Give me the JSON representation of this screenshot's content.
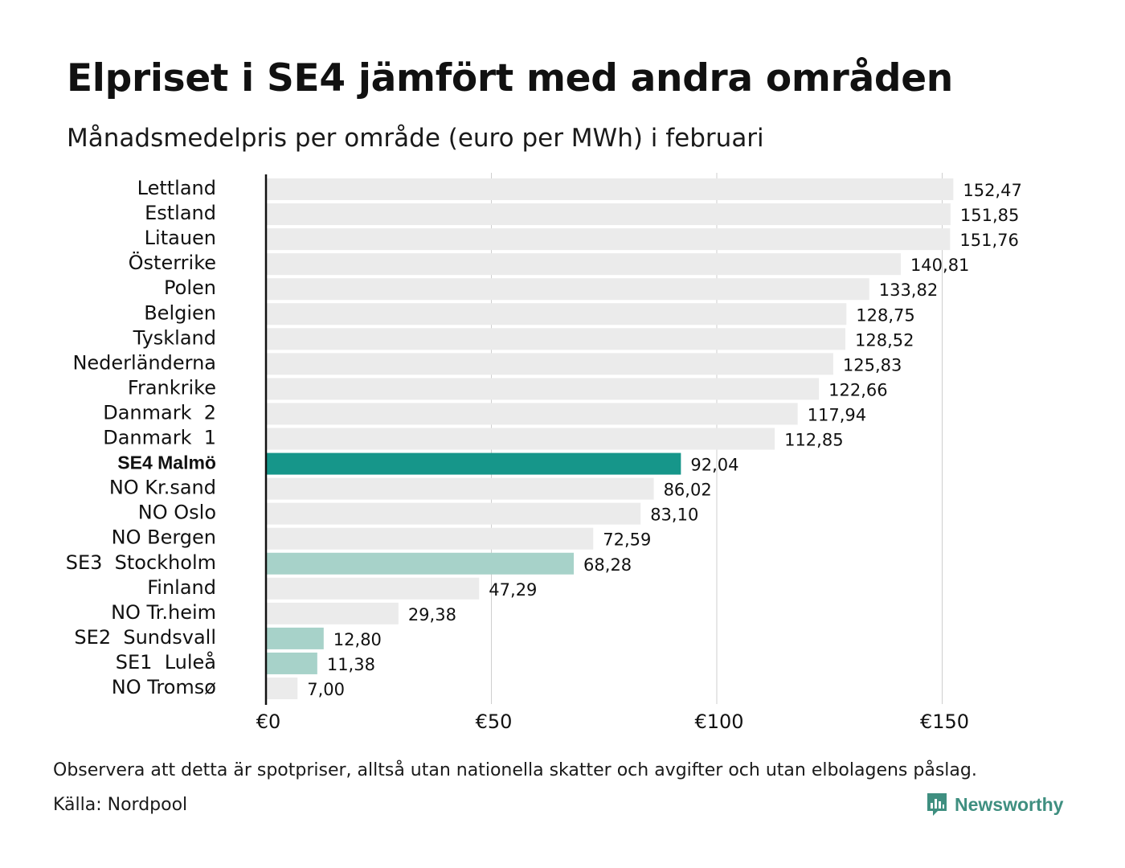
{
  "title": "Elpriset i SE4 jämfört med andra områden",
  "subtitle": "Månadsmedelpris per område (euro per MWh) i februari",
  "note": "Observera att detta är spotpriser, alltså utan nationella skatter och avgifter och utan elbolagens påslag.",
  "source": "Källa: Nordpool",
  "brand": {
    "name": "Newsworthy",
    "icon": "newsworthy-logo-icon",
    "color": "#3f8f80"
  },
  "colors": {
    "default": "#ebebeb",
    "highlight": "#16968a",
    "se_light": "#a7d2c9",
    "grid": "#cfcfcf",
    "axis": "#111111"
  },
  "chart_data": {
    "type": "bar",
    "orientation": "horizontal",
    "xlim": [
      0,
      160
    ],
    "x_ticks": [
      0,
      50,
      100,
      150
    ],
    "x_tick_labels": [
      "€0",
      "€50",
      "€100",
      "€150"
    ],
    "grid": true,
    "categories": [
      "Lettland",
      "Estland",
      "Litauen",
      "Österrike",
      "Polen",
      "Belgien",
      "Tyskland",
      "Nederländerna",
      "Frankrike",
      "Danmark  2",
      "Danmark  1",
      "SE4 Malmö",
      "NO Kr.sand",
      "NO Oslo",
      "NO Bergen",
      "SE3  Stockholm",
      "Finland",
      "NO Tr.heim",
      "SE2  Sundsvall",
      "SE1  Luleå",
      "NO Tromsø"
    ],
    "values": [
      152.47,
      151.85,
      151.76,
      140.81,
      133.82,
      128.75,
      128.52,
      125.83,
      122.66,
      117.94,
      112.85,
      92.04,
      86.02,
      83.1,
      72.59,
      68.28,
      47.29,
      29.38,
      12.8,
      11.38,
      7.0
    ],
    "value_labels": [
      "152,47",
      "151,85",
      "151,76",
      "140,81",
      "133,82",
      "128,75",
      "128,52",
      "125,83",
      "122,66",
      "117,94",
      "112,85",
      "92,04",
      "86,02",
      "83,10",
      "72,59",
      "68,28",
      "47,29",
      "29,38",
      "12,80",
      "11,38",
      "7,00"
    ],
    "bar_colors": [
      "default",
      "default",
      "default",
      "default",
      "default",
      "default",
      "default",
      "default",
      "default",
      "default",
      "default",
      "highlight",
      "default",
      "default",
      "default",
      "se_light",
      "default",
      "default",
      "se_light",
      "se_light",
      "default"
    ],
    "bold_categories": [
      "SE4 Malmö"
    ]
  }
}
